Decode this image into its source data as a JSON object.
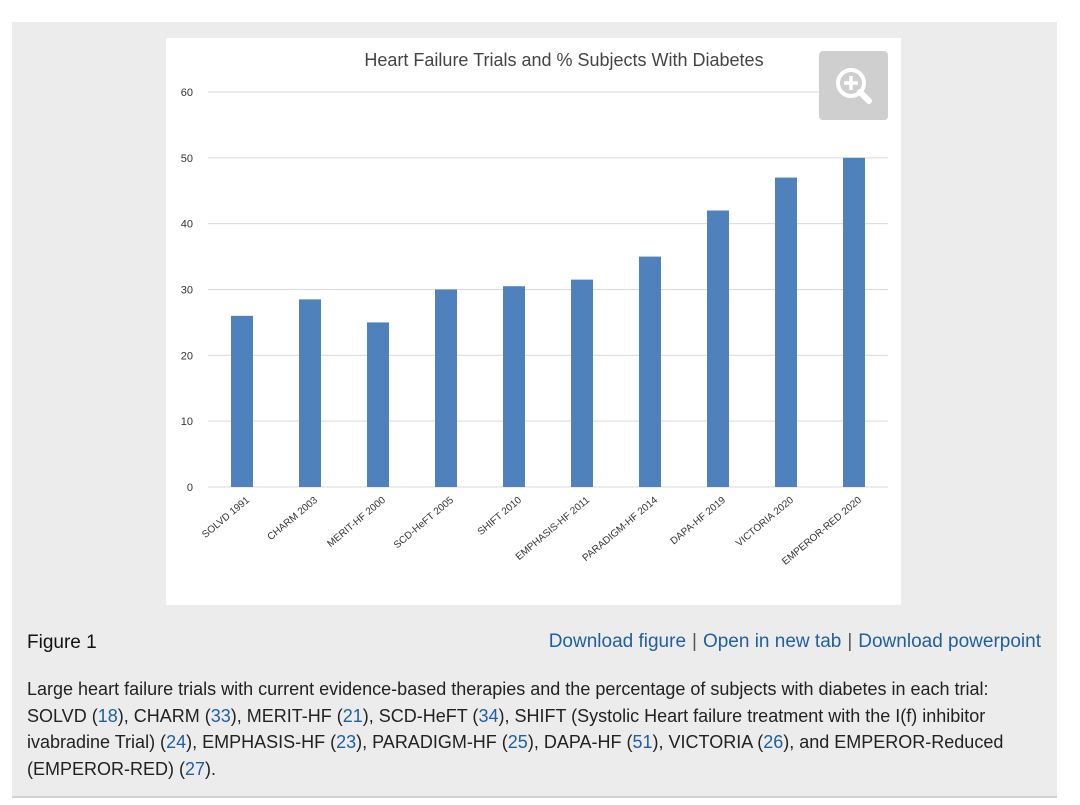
{
  "chart_data": {
    "type": "bar",
    "title": "Heart Failure Trials and % Subjects With Diabetes",
    "xlabel": "",
    "ylabel": "",
    "categories": [
      "SOLVD 1991",
      "CHARM 2003",
      "MERIT-HF 2000",
      "SCD-HeFT 2005",
      "SHIFT 2010",
      "EMPHASIS-HF 2011",
      "PARADIGM-HF 2014",
      "DAPA-HF 2019",
      "VICTORIA 2020",
      "EMPEROR-RED 2020"
    ],
    "values": [
      26,
      28.5,
      25,
      30,
      30.5,
      31.5,
      35,
      42,
      47,
      50
    ],
    "ylim": [
      0,
      60
    ],
    "yticks": [
      0,
      10,
      20,
      30,
      40,
      50,
      60
    ],
    "grid": true,
    "bar_color": "#4f81bd"
  },
  "figure": {
    "label": "Figure 1",
    "zoom_icon": "zoom-in-icon",
    "links": {
      "download_figure": "Download figure",
      "open_new_tab": "Open in new tab",
      "download_powerpoint": "Download powerpoint",
      "separator": "|"
    },
    "caption": {
      "p1": "Large heart failure trials with current evidence-based therapies and the percentage of subjects with diabetes in each trial: SOLVD (",
      "r1": "18",
      "p2": "), CHARM (",
      "r2": "33",
      "p3": "), MERIT-HF (",
      "r3": "21",
      "p4": "), SCD-HeFT (",
      "r4": "34",
      "p5": "), SHIFT (Systolic Heart failure treatment with the I(f) inhibitor ivabradine Trial) (",
      "r5": "24",
      "p6": "), EMPHASIS-HF (",
      "r6": "23",
      "p7": "), PARADIGM-HF (",
      "r7": "25",
      "p8": "), DAPA-HF (",
      "r8": "51",
      "p9": "), VICTORIA (",
      "r9": "26",
      "p10": "), and EMPEROR-Reduced (EMPEROR-RED) (",
      "r10": "27",
      "p11": ")."
    }
  },
  "colors": {
    "link": "#1f5f9e",
    "panel_bg": "#ececec",
    "zoom_bg": "#cfcfcf"
  }
}
